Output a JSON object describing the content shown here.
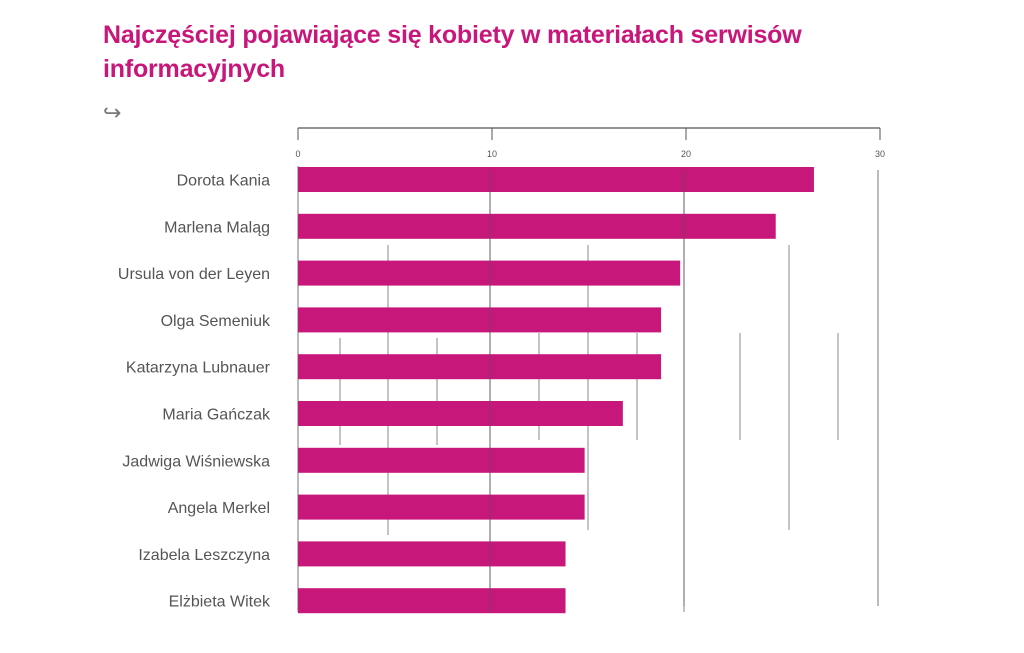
{
  "chart_data": {
    "type": "bar",
    "orientation": "horizontal",
    "title": "Najczęściej pojawiające się kobiety w materiałach serwisów informacyjnych",
    "categories": [
      "Dorota Kania",
      "Marlena Maląg",
      "Ursula von der Leyen",
      "Olga Semeniuk",
      "Katarzyna Lubnauer",
      "Maria Gańczak",
      "Jadwiga Wiśniewska",
      "Angela Merkel",
      "Izabela Leszczyna",
      "Elżbieta Witek"
    ],
    "values": [
      27,
      25,
      20,
      19,
      19,
      17,
      15,
      15,
      14,
      14
    ],
    "xlim": [
      0,
      30
    ],
    "xticks": [
      "0",
      "10",
      "20",
      "30"
    ],
    "xlabel": "",
    "ylabel": "",
    "grid": true,
    "bar_color": "#c8177a",
    "axis_position": "top"
  },
  "header": {
    "arrow_icon": "hook-arrow-right"
  }
}
